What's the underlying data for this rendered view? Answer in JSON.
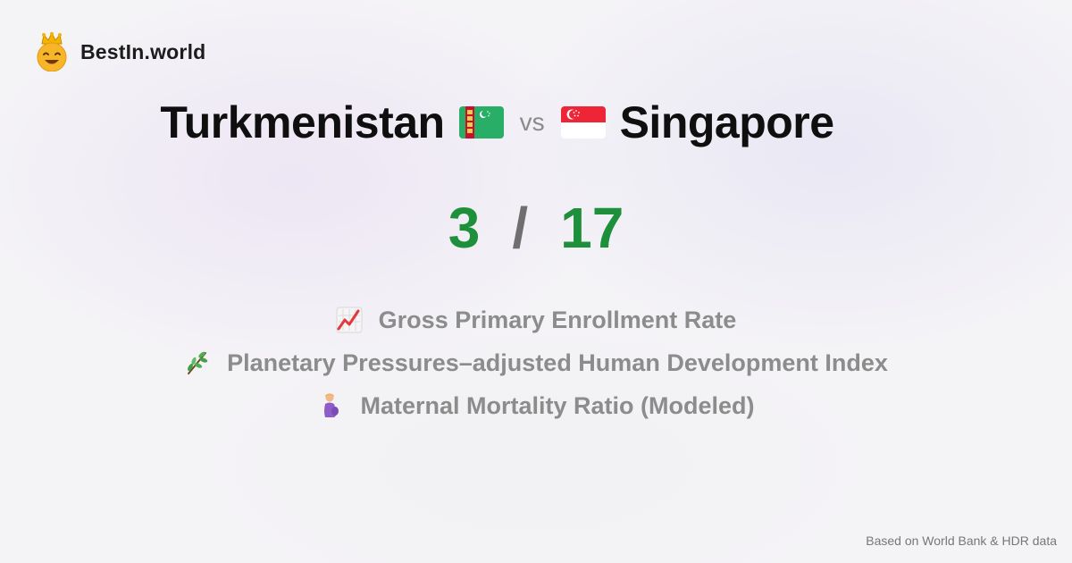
{
  "brand": {
    "name": "BestIn.world",
    "logo_icon": "crown-smiley-icon"
  },
  "comparison": {
    "left_country": "Turkmenistan",
    "left_flag": "turkmenistan-flag-icon",
    "vs_label": "vs",
    "right_country": "Singapore",
    "right_flag": "singapore-flag-icon",
    "left_score": "3",
    "separator": "/",
    "right_score": "17",
    "score_color": "#1e8f3a"
  },
  "metrics": [
    {
      "label": "Gross Primary Enrollment Rate",
      "icon": "chart-increasing-icon"
    },
    {
      "label": "Planetary Pressures–adjusted Human Development Index",
      "icon": "herb-icon"
    },
    {
      "label": "Maternal Mortality Ratio (Modeled)",
      "icon": "pregnant-woman-icon"
    }
  ],
  "footer": {
    "source_note": "Based on World Bank & HDR data"
  }
}
